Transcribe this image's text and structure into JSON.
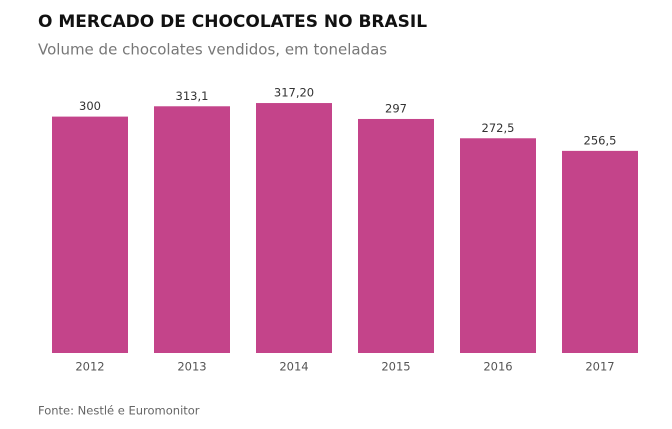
{
  "chart_data": {
    "type": "bar",
    "title": "O MERCADO DE CHOCOLATES NO BRASIL",
    "subtitle": "Volume de chocolates vendidos, em toneladas",
    "categories": [
      "2012",
      "2013",
      "2014",
      "2015",
      "2016",
      "2017"
    ],
    "values": [
      300,
      313.1,
      317.2,
      297,
      272.5,
      256.5
    ],
    "value_labels": [
      "300",
      "313,1",
      "317,20",
      "297",
      "272,5",
      "256,5"
    ],
    "color": "#c4448a",
    "source": "Fonte: Nestlé e Euromonitor"
  }
}
